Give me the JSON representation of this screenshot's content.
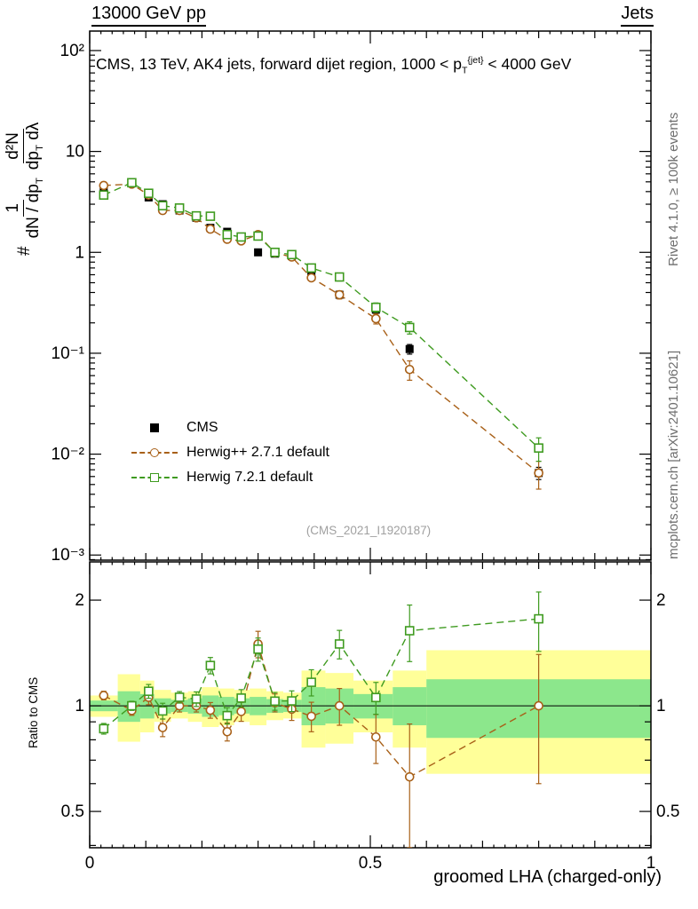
{
  "header": {
    "left_title": "13000 GeV pp",
    "right_title": "Jets"
  },
  "panel_title": {
    "prefix": "CMS, 13 TeV, AK4 jets, forward dijet region, 1000 < p",
    "sub": "T",
    "sup": "{jet}",
    "suffix": " < 4000 GeV"
  },
  "y_axis_label": {
    "hash": "#",
    "frac1_num": "1",
    "frac1_den": "dN / dp",
    "frac1_den_sub": "T",
    "frac2_num": "d²N",
    "frac2_den_a": "dp",
    "frac2_den_a_sub": "T",
    "frac2_den_b": " dλ"
  },
  "ratio_y_label": "Ratio to CMS",
  "x_axis_label": "groomed LHA (charged-only)",
  "watermark": "(CMS_2021_I1920187)",
  "side_notes": {
    "top_right": "Rivet 4.1.0, ≥ 100k events",
    "bottom_right": "mcplots.cern.ch [arXiv:2401.10621]"
  },
  "chart_data": {
    "type": "line",
    "title": "CMS, 13 TeV, AK4 jets, forward dijet region, 1000 < pT{jet} < 4000 GeV",
    "xlabel": "groomed LHA (charged-only)",
    "ylabel": "# 1/(dN/dpT) d²N/(dpT dλ)",
    "xlim": [
      0,
      1
    ],
    "xticks": {
      "values": [
        0,
        0.5,
        1
      ],
      "labels": [
        "0",
        "0.5",
        "1"
      ]
    },
    "main_panel": {
      "yscale": "log",
      "ylim": [
        0.00089,
        156
      ],
      "yticks": {
        "values": [
          100,
          10,
          1,
          0.1,
          0.01,
          0.001
        ],
        "labels": [
          "10²",
          "10",
          "1",
          "10⁻¹",
          "10⁻²",
          "10⁻³"
        ]
      },
      "series": [
        {
          "name": "CMS",
          "marker": "filled-square",
          "line": "none",
          "color": "#000000",
          "x": [
            0.025,
            0.075,
            0.105,
            0.13,
            0.16,
            0.19,
            0.215,
            0.245,
            0.27,
            0.3,
            0.33,
            0.36,
            0.395,
            0.445,
            0.51,
            0.57,
            0.8
          ],
          "y": [
            4.3,
            4.9,
            3.5,
            3.0,
            2.6,
            2.2,
            1.75,
            1.6,
            1.35,
            1.0,
            0.97,
            0.92,
            0.6,
            0.38,
            0.27,
            0.11,
            0.0065
          ],
          "yerr": [
            0.25,
            0.2,
            0.15,
            0.12,
            0.1,
            0.09,
            0.08,
            0.07,
            0.06,
            0.05,
            0.05,
            0.04,
            0.03,
            0.025,
            0.018,
            0.012,
            0.0009
          ]
        },
        {
          "name": "Herwig++ 2.7.1 default",
          "marker": "open-circle",
          "line": "dashed",
          "color": "#a86018",
          "x": [
            0.025,
            0.075,
            0.105,
            0.13,
            0.16,
            0.19,
            0.215,
            0.245,
            0.27,
            0.3,
            0.33,
            0.36,
            0.395,
            0.445,
            0.51,
            0.57,
            0.8
          ],
          "y": [
            4.6,
            4.75,
            3.7,
            2.6,
            2.6,
            2.2,
            1.7,
            1.35,
            1.3,
            1.5,
            0.99,
            0.9,
            0.56,
            0.38,
            0.22,
            0.069,
            0.0065
          ],
          "yerr": [
            0.15,
            0.15,
            0.12,
            0.1,
            0.09,
            0.08,
            0.07,
            0.06,
            0.06,
            0.1,
            0.05,
            0.05,
            0.04,
            0.035,
            0.025,
            0.015,
            0.002
          ]
        },
        {
          "name": "Herwig 7.2.1 default",
          "marker": "open-square",
          "line": "dashed",
          "color": "#3f9b20",
          "x": [
            0.025,
            0.075,
            0.105,
            0.13,
            0.16,
            0.19,
            0.215,
            0.245,
            0.27,
            0.3,
            0.33,
            0.36,
            0.395,
            0.445,
            0.51,
            0.57,
            0.8
          ],
          "y": [
            3.7,
            4.9,
            3.85,
            2.9,
            2.75,
            2.3,
            2.28,
            1.5,
            1.42,
            1.45,
            1.0,
            0.95,
            0.7,
            0.57,
            0.285,
            0.18,
            0.0115
          ],
          "yerr": [
            0.12,
            0.15,
            0.13,
            0.1,
            0.1,
            0.09,
            0.09,
            0.07,
            0.07,
            0.09,
            0.05,
            0.05,
            0.05,
            0.05,
            0.03,
            0.025,
            0.003
          ]
        }
      ]
    },
    "ratio_panel": {
      "yscale": "log",
      "ylim": [
        0.394,
        2.57
      ],
      "reference_line": 1,
      "yticks": {
        "values": [
          2,
          1,
          0.5
        ],
        "labels": [
          "2",
          "1",
          "0.5"
        ]
      },
      "bands": {
        "yellow_color": "#ffff99",
        "green_color": "#8ce78c",
        "edges": [
          0,
          0.05,
          0.09,
          0.115,
          0.145,
          0.175,
          0.2,
          0.23,
          0.2575,
          0.285,
          0.315,
          0.345,
          0.3775,
          0.42,
          0.47,
          0.54,
          0.6,
          1.0
        ],
        "yellow": [
          [
            0.93,
            1.07
          ],
          [
            0.79,
            1.23
          ],
          [
            0.84,
            1.18
          ],
          [
            0.9,
            1.11
          ],
          [
            0.92,
            1.09
          ],
          [
            0.9,
            1.1
          ],
          [
            0.87,
            1.13
          ],
          [
            0.88,
            1.12
          ],
          [
            0.9,
            1.11
          ],
          [
            0.88,
            1.12
          ],
          [
            0.91,
            1.1
          ],
          [
            0.92,
            1.09
          ],
          [
            0.76,
            1.26
          ],
          [
            0.78,
            1.24
          ],
          [
            0.84,
            1.18
          ],
          [
            0.76,
            1.26
          ],
          [
            0.64,
            1.44
          ]
        ],
        "green": [
          [
            0.965,
            1.035
          ],
          [
            0.9,
            1.1
          ],
          [
            0.92,
            1.08
          ],
          [
            0.95,
            1.05
          ],
          [
            0.96,
            1.04
          ],
          [
            0.95,
            1.05
          ],
          [
            0.93,
            1.07
          ],
          [
            0.94,
            1.06
          ],
          [
            0.95,
            1.05
          ],
          [
            0.94,
            1.06
          ],
          [
            0.955,
            1.045
          ],
          [
            0.96,
            1.04
          ],
          [
            0.88,
            1.13
          ],
          [
            0.89,
            1.12
          ],
          [
            0.92,
            1.08
          ],
          [
            0.88,
            1.13
          ],
          [
            0.81,
            1.19
          ]
        ]
      },
      "series": [
        {
          "name": "Herwig++ 2.7.1 default",
          "main_index": 1,
          "err": [
            0.03,
            0.03,
            0.05,
            0.05,
            0.04,
            0.04,
            0.05,
            0.05,
            0.06,
            0.13,
            0.06,
            0.07,
            0.09,
            0.12,
            0.13,
            0.26,
            0.4
          ]
        },
        {
          "name": "Herwig 7.2.1 default",
          "main_index": 2,
          "err": [
            0.03,
            0.03,
            0.05,
            0.05,
            0.04,
            0.05,
            0.07,
            0.05,
            0.06,
            0.11,
            0.06,
            0.07,
            0.1,
            0.14,
            0.11,
            0.3,
            0.34
          ]
        }
      ]
    }
  }
}
